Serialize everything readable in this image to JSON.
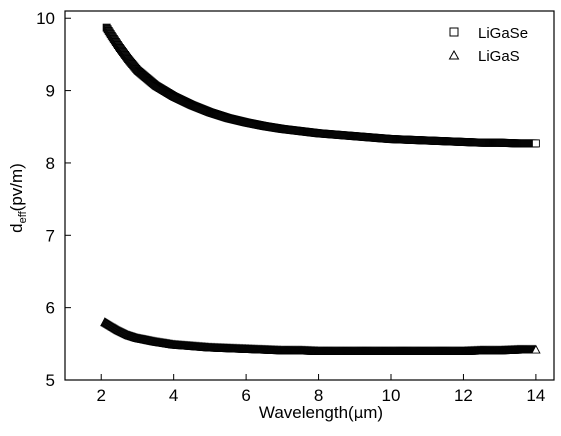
{
  "chart_data": {
    "type": "scatter",
    "xlabel": {
      "pre": "Wavelength(",
      "mu": "μ",
      "post": "m)"
    },
    "ylabel": {
      "base": "d",
      "sub": "eff",
      "post": "(pv/m)"
    },
    "xlim": [
      1,
      14.5
    ],
    "ylim": [
      5,
      10.1
    ],
    "xticks": [
      2,
      4,
      6,
      8,
      10,
      12,
      14
    ],
    "yticks": [
      5,
      6,
      7,
      8,
      9,
      10
    ],
    "legend_position": "top-right",
    "series": [
      {
        "name": "LiGaSe",
        "marker": "square",
        "x": [
          2.15,
          2.3,
          2.5,
          2.75,
          3.0,
          3.5,
          4.0,
          4.5,
          5.0,
          5.5,
          6.0,
          6.5,
          7.0,
          7.5,
          8.0,
          8.5,
          9.0,
          9.5,
          10.0,
          10.5,
          11.0,
          11.5,
          12.0,
          12.5,
          13.0,
          13.5,
          14.0
        ],
        "y": [
          9.87,
          9.75,
          9.6,
          9.43,
          9.28,
          9.07,
          8.92,
          8.8,
          8.7,
          8.62,
          8.56,
          8.51,
          8.47,
          8.44,
          8.41,
          8.39,
          8.37,
          8.35,
          8.33,
          8.32,
          8.31,
          8.3,
          8.29,
          8.28,
          8.28,
          8.27,
          8.27
        ]
      },
      {
        "name": "LiGaS",
        "marker": "triangle",
        "x": [
          2.1,
          2.3,
          2.5,
          2.75,
          3.0,
          3.5,
          4.0,
          4.5,
          5.0,
          5.5,
          6.0,
          6.5,
          7.0,
          7.5,
          8.0,
          8.5,
          9.0,
          9.5,
          10.0,
          10.5,
          11.0,
          11.5,
          12.0,
          12.5,
          13.0,
          13.5,
          14.0
        ],
        "y": [
          5.8,
          5.74,
          5.68,
          5.62,
          5.58,
          5.53,
          5.49,
          5.47,
          5.45,
          5.44,
          5.43,
          5.42,
          5.41,
          5.41,
          5.4,
          5.4,
          5.4,
          5.4,
          5.4,
          5.4,
          5.4,
          5.4,
          5.4,
          5.41,
          5.41,
          5.42,
          5.42
        ]
      }
    ]
  }
}
